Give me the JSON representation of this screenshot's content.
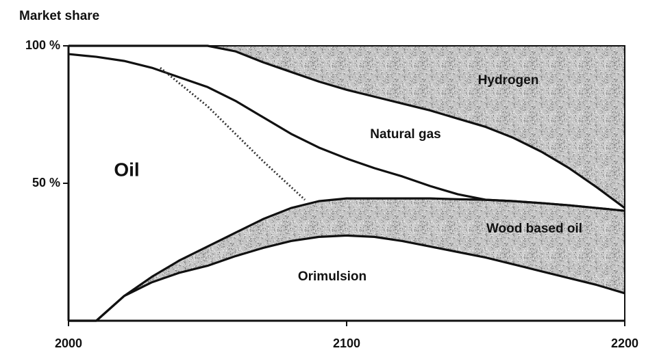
{
  "chart_data": {
    "type": "stacked_area",
    "y_label": "Market share",
    "x": [
      2000,
      2010,
      2020,
      2030,
      2040,
      2050,
      2060,
      2070,
      2080,
      2090,
      2100,
      2110,
      2120,
      2130,
      2140,
      2150,
      2160,
      2170,
      2180,
      2190,
      2200
    ],
    "series": [
      {
        "name": "Orimulsion",
        "color": "#ffffff",
        "values": [
          0,
          0,
          9,
          14,
          17.5,
          20,
          23.5,
          26.5,
          29,
          30.5,
          31,
          30.5,
          29,
          27,
          25,
          23,
          20.5,
          18,
          15.5,
          13,
          10
        ]
      },
      {
        "name": "Wood based oil",
        "color": "#c4c4c4",
        "values": [
          0,
          0,
          0,
          2,
          4.5,
          7,
          8.5,
          10.5,
          12,
          13,
          13.5,
          14,
          15.5,
          17.5,
          19.2,
          21,
          23,
          24.8,
          26.5,
          28,
          30
        ]
      },
      {
        "name": "Oil",
        "color": "#ffffff",
        "values": [
          97,
          96,
          85.5,
          76,
          66.5,
          58,
          48,
          37,
          27,
          19.5,
          14.5,
          11,
          8,
          4.5,
          1.8,
          0,
          0,
          0,
          0,
          0,
          0
        ]
      },
      {
        "name": "Natural gas",
        "color": "#ffffff",
        "values": [
          3,
          4,
          5.5,
          8,
          11.5,
          15,
          18,
          20,
          22.5,
          24,
          25,
          26,
          26.5,
          27.5,
          27.5,
          26.5,
          23,
          18.7,
          13.5,
          7.5,
          1
        ]
      },
      {
        "name": "Hydrogen",
        "color": "#c4c4c4",
        "values": [
          0,
          0,
          0,
          0,
          0,
          0,
          2,
          6,
          9.5,
          13,
          16,
          18.5,
          21,
          23.5,
          26.5,
          29.5,
          33.5,
          38.5,
          44.5,
          51.5,
          59
        ]
      }
    ],
    "dotted_line": {
      "x": [
        2033,
        2050,
        2070,
        2085
      ],
      "values": [
        92,
        78,
        58,
        44
      ]
    },
    "xlim": [
      2000,
      2200
    ],
    "xticks": [
      2000,
      2100,
      2200
    ],
    "ylim": [
      0,
      100
    ],
    "yticks": [
      {
        "value": 50,
        "label": "50 %"
      },
      {
        "value": 100,
        "label": "100 %"
      }
    ]
  }
}
